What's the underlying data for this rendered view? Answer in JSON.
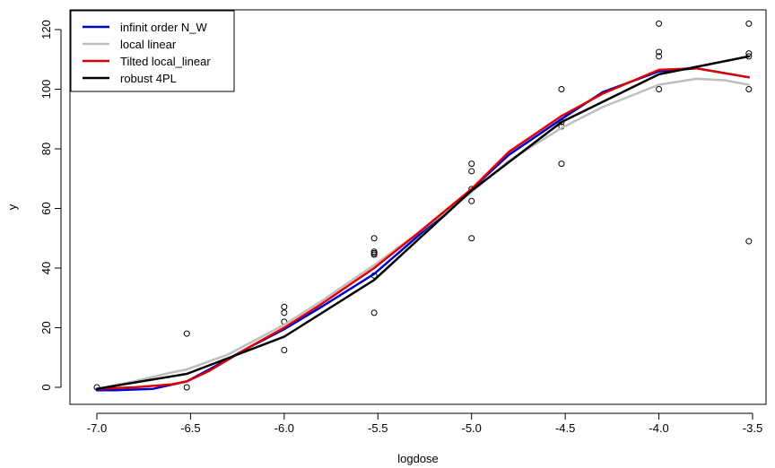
{
  "chart_data": {
    "type": "scatter",
    "title": "",
    "xlabel": "logdose",
    "ylabel": "y",
    "xlim": [
      -7.0,
      -3.5
    ],
    "ylim": [
      -1,
      124
    ],
    "x_ticks": [
      -7.0,
      -6.5,
      -6.0,
      -5.5,
      -5.0,
      -4.5,
      -4.0,
      -3.5
    ],
    "x_tick_labels": [
      "-7.0",
      "-6.5",
      "-6.0",
      "-5.5",
      "-5.0",
      "-4.5",
      "-4.0",
      "-3.5"
    ],
    "y_ticks": [
      0,
      20,
      40,
      60,
      80,
      100,
      120
    ],
    "y_tick_labels": [
      "0",
      "20",
      "40",
      "60",
      "80",
      "100",
      "120"
    ],
    "grid": false,
    "legend_position": "top-left",
    "points": [
      {
        "x": -7.0,
        "y": 0
      },
      {
        "x": -6.52,
        "y": 18
      },
      {
        "x": -6.52,
        "y": 0
      },
      {
        "x": -6.0,
        "y": 27
      },
      {
        "x": -6.0,
        "y": 25
      },
      {
        "x": -6.0,
        "y": 22
      },
      {
        "x": -6.0,
        "y": 12.5
      },
      {
        "x": -5.52,
        "y": 50
      },
      {
        "x": -5.52,
        "y": 45.5
      },
      {
        "x": -5.52,
        "y": 45
      },
      {
        "x": -5.52,
        "y": 44.5
      },
      {
        "x": -5.52,
        "y": 37.5
      },
      {
        "x": -5.52,
        "y": 25
      },
      {
        "x": -5.0,
        "y": 75
      },
      {
        "x": -5.0,
        "y": 72.5
      },
      {
        "x": -5.0,
        "y": 66.5
      },
      {
        "x": -5.0,
        "y": 62.5
      },
      {
        "x": -5.0,
        "y": 50
      },
      {
        "x": -4.52,
        "y": 100
      },
      {
        "x": -4.52,
        "y": 89
      },
      {
        "x": -4.52,
        "y": 87.5
      },
      {
        "x": -4.52,
        "y": 75
      },
      {
        "x": -4.0,
        "y": 122
      },
      {
        "x": -4.0,
        "y": 112.5
      },
      {
        "x": -4.0,
        "y": 111
      },
      {
        "x": -4.0,
        "y": 100
      },
      {
        "x": -3.52,
        "y": 122
      },
      {
        "x": -3.52,
        "y": 112
      },
      {
        "x": -3.52,
        "y": 111
      },
      {
        "x": -3.52,
        "y": 100
      },
      {
        "x": -3.52,
        "y": 49
      }
    ],
    "series": [
      {
        "name": "infinit order N_W",
        "color": "#0000cc",
        "x": [
          -7.0,
          -6.9,
          -6.7,
          -6.52,
          -6.4,
          -6.2,
          -6.0,
          -5.8,
          -5.52,
          -5.3,
          -5.0,
          -4.8,
          -4.52,
          -4.3,
          -4.0,
          -3.8,
          -3.52
        ],
        "y": [
          -1,
          -1,
          -0.5,
          2,
          6,
          13,
          19.5,
          27,
          38,
          50,
          66.5,
          78,
          90,
          99,
          106,
          107,
          104
        ]
      },
      {
        "name": "local linear",
        "color": "#bebebe",
        "x": [
          -7.0,
          -6.8,
          -6.6,
          -6.52,
          -6.3,
          -6.0,
          -5.8,
          -5.52,
          -5.3,
          -5.0,
          -4.8,
          -4.52,
          -4.3,
          -4.0,
          -3.8,
          -3.65,
          -3.52
        ],
        "y": [
          -0.5,
          2,
          5,
          6,
          11,
          21,
          29,
          41,
          51,
          65.5,
          76,
          87,
          94,
          101.5,
          103.5,
          103,
          101.5
        ]
      },
      {
        "name": "Tilted local_linear",
        "color": "#dd0000",
        "x": [
          -7.0,
          -6.8,
          -6.6,
          -6.52,
          -6.4,
          -6.2,
          -6.0,
          -5.8,
          -5.52,
          -5.3,
          -5.0,
          -4.8,
          -4.52,
          -4.3,
          -4.0,
          -3.8,
          -3.52
        ],
        "y": [
          -0.5,
          0,
          1,
          2,
          5.5,
          13,
          20,
          28,
          40,
          51,
          66.5,
          79,
          91,
          98.5,
          106.5,
          107,
          104
        ]
      },
      {
        "name": "robust 4PL",
        "color": "#000000",
        "x": [
          -7.0,
          -6.52,
          -6.0,
          -5.52,
          -5.0,
          -4.52,
          -4.0,
          -3.52
        ],
        "y": [
          -0.5,
          4.5,
          17,
          36,
          66,
          89,
          105,
          111
        ]
      }
    ]
  }
}
